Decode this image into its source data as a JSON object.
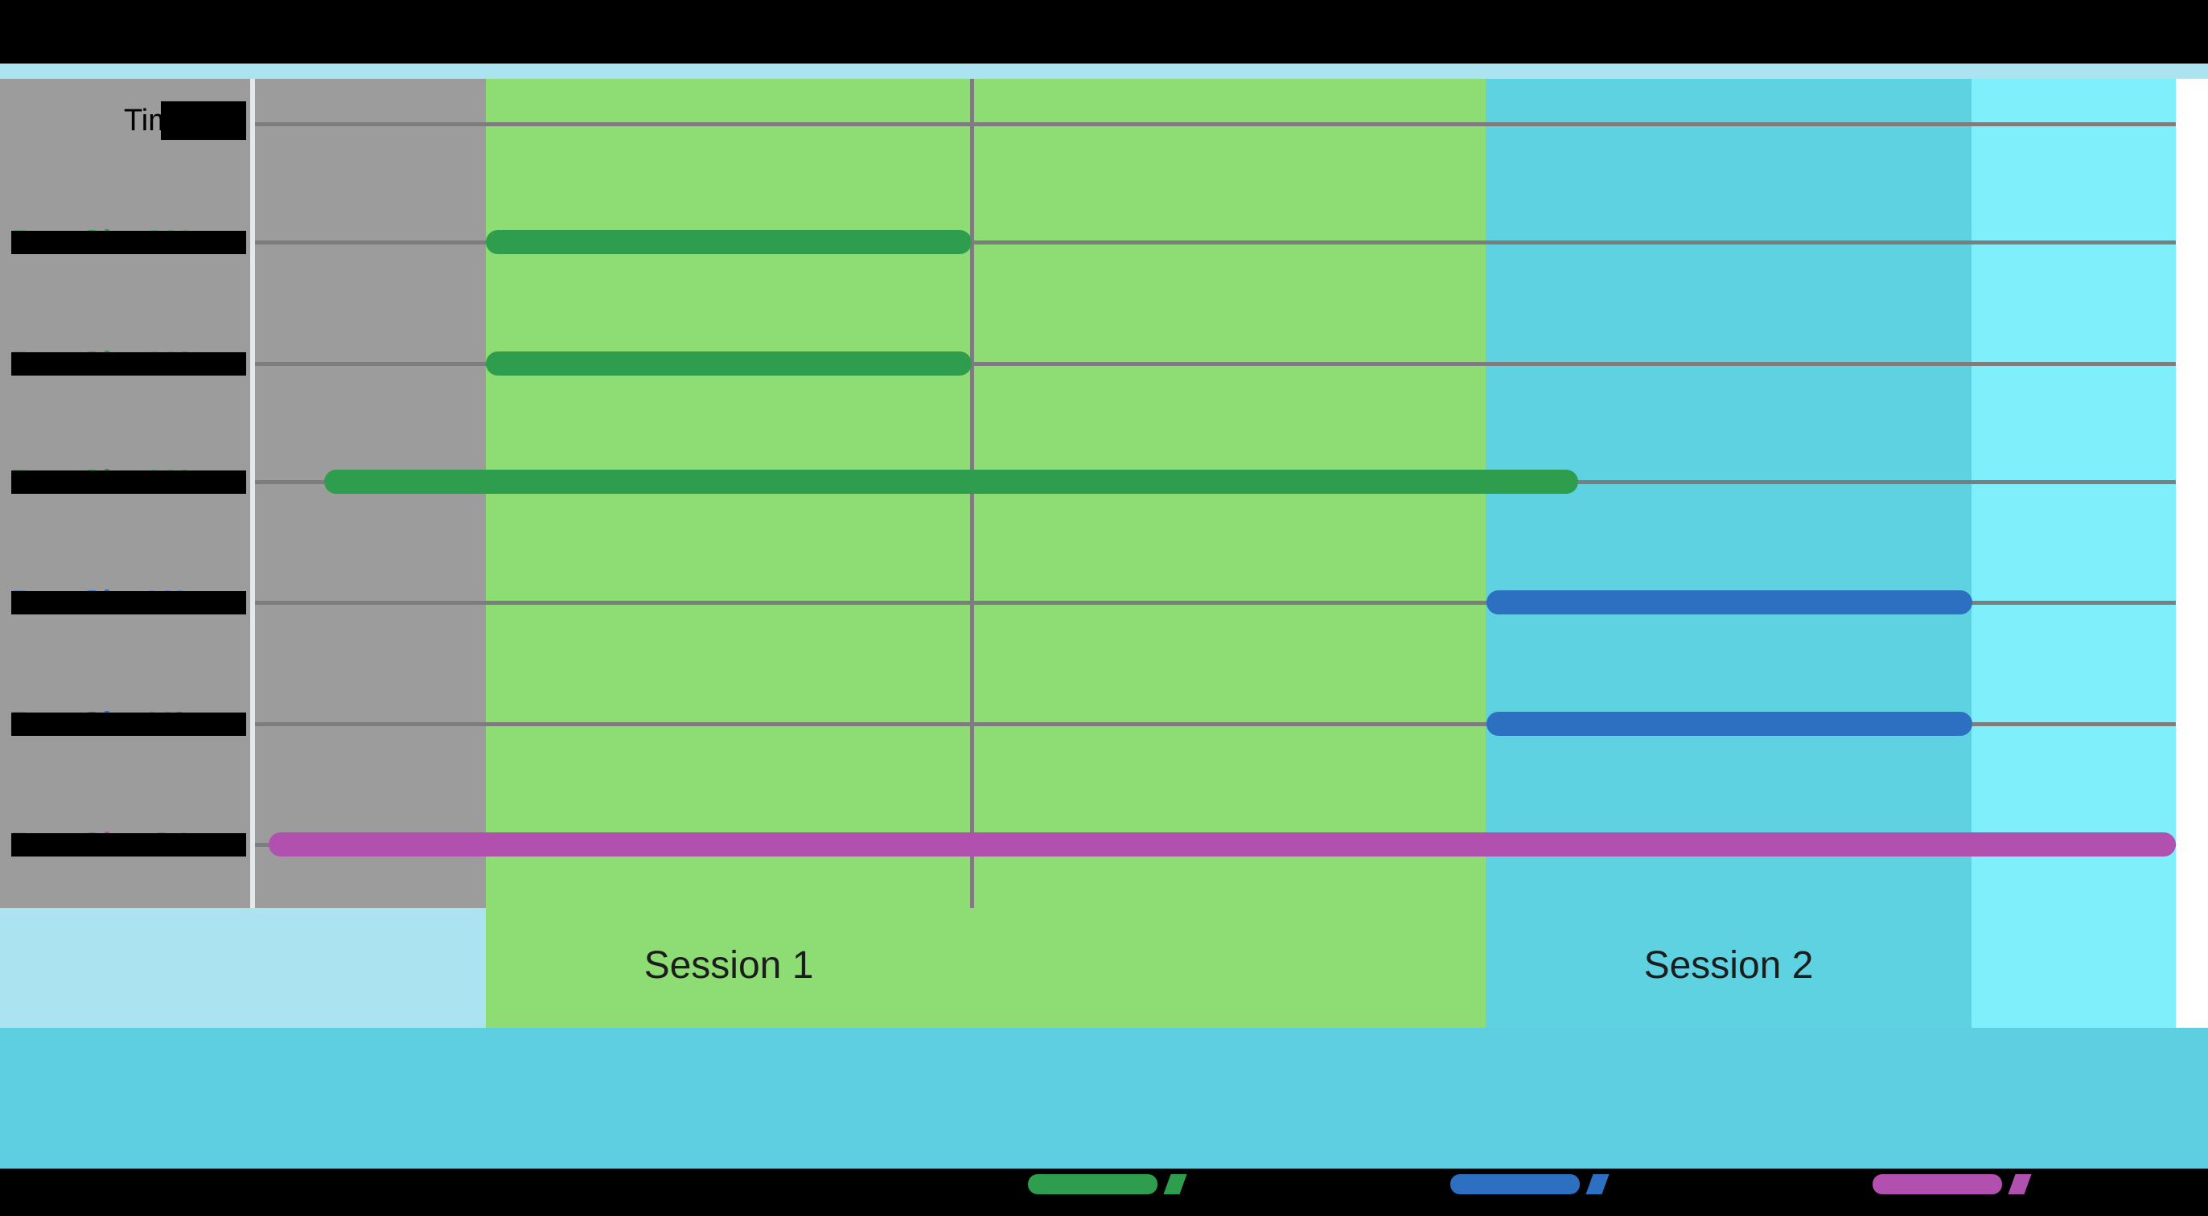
{
  "figure": {
    "time_label": "Time",
    "sessions": [
      {
        "label": "Session 1"
      },
      {
        "label": "Session 2"
      }
    ]
  },
  "colors": {
    "bar_green": "#2e9d4e",
    "bar_blue": "#2d6fc1",
    "bar_magenta": "#b150af",
    "region_session1_green": "#8edc74",
    "region_session2_cyan": "#5fd2e2",
    "region_post_cyan": "#7eeffb",
    "region_gray": "#9c9c9c",
    "strip_cyan": "#abe4f0",
    "band_cyan": "#5ecfe0",
    "gridline_gray": "#7d7d7d"
  },
  "chart_data": {
    "type": "bar",
    "subtype": "horizontal-gantt-timeline",
    "title": "",
    "xlabel": "Time",
    "x_axis": {
      "unit": "relative-fraction-of-plot-width",
      "range": [
        0,
        1
      ],
      "ticks_visible": false
    },
    "grid": true,
    "rows": [
      {
        "label": "ParaSite M1",
        "color": "#2e9d4e"
      },
      {
        "label": "ParaSite M2",
        "color": "#2e9d4e"
      },
      {
        "label": "ParaSite M3",
        "color": "#2e9d4e"
      },
      {
        "label": "ParaSite V1",
        "color": "#2d6fc1"
      },
      {
        "label": "ParaSite V2",
        "color": "#2d6fc1"
      },
      {
        "label": "ParaSite G1",
        "color": "#b150af"
      }
    ],
    "bars": [
      {
        "row": 0,
        "start": 0.12,
        "end": 0.373,
        "color": "#2e9d4e",
        "session": "Session 1"
      },
      {
        "row": 1,
        "start": 0.12,
        "end": 0.373,
        "color": "#2e9d4e",
        "session": "Session 1"
      },
      {
        "row": 2,
        "start": 0.036,
        "end": 0.689,
        "color": "#2e9d4e",
        "session": "Session 1"
      },
      {
        "row": 3,
        "start": 0.641,
        "end": 0.894,
        "color": "#2d6fc1",
        "session": "Session 2"
      },
      {
        "row": 4,
        "start": 0.641,
        "end": 0.894,
        "color": "#2d6fc1",
        "session": "Session 2"
      },
      {
        "row": 5,
        "start": 0.007,
        "end": 1.0,
        "color": "#b150af",
        "session": "Session 1 + Session 2"
      }
    ],
    "session_regions": [
      {
        "label": "Session 1",
        "start": 0.12,
        "end": 0.641,
        "color": "#8edc74"
      },
      {
        "label": "Session 2",
        "start": 0.641,
        "end": 0.894,
        "color": "#5fd2e2"
      },
      {
        "start": 0.894,
        "end": 1.0,
        "color": "#7eeffb"
      }
    ],
    "legend": [
      {
        "color": "#2e9d4e"
      },
      {
        "color": "#2d6fc1"
      },
      {
        "color": "#b150af"
      }
    ]
  }
}
